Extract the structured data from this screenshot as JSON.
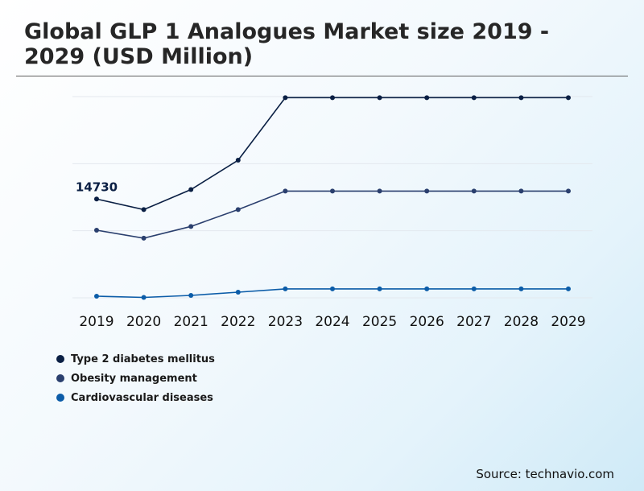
{
  "title": "Global GLP 1 Analogues Market size 2019 - 2029 (USD Million)",
  "source": "Source: technavio.com",
  "chart_data": {
    "type": "line",
    "x": [
      "2019",
      "2020",
      "2021",
      "2022",
      "2023",
      "2024",
      "2025",
      "2026",
      "2027",
      "2028",
      "2029"
    ],
    "ylim": [
      0,
      30000
    ],
    "grid": true,
    "legend_position": "bottom-left",
    "series": [
      {
        "name": "Type 2 diabetes mellitus",
        "color": "#0a1f44",
        "values": [
          14730,
          13150,
          16140,
          20520,
          29840,
          29840,
          29840,
          29840,
          29840,
          29840,
          29840
        ]
      },
      {
        "name": "Obesity management",
        "color": "#2a3f6e",
        "values": [
          10080,
          8890,
          10640,
          13150,
          15910,
          15910,
          15910,
          15910,
          15910,
          15910,
          15910
        ]
      },
      {
        "name": "Cardiovascular diseases",
        "color": "#0b5ca8",
        "values": [
          240,
          60,
          360,
          840,
          1330,
          1330,
          1330,
          1330,
          1330,
          1330,
          1330
        ]
      }
    ],
    "annotations": [
      {
        "series": 0,
        "index": 0,
        "text": "14730"
      }
    ]
  }
}
